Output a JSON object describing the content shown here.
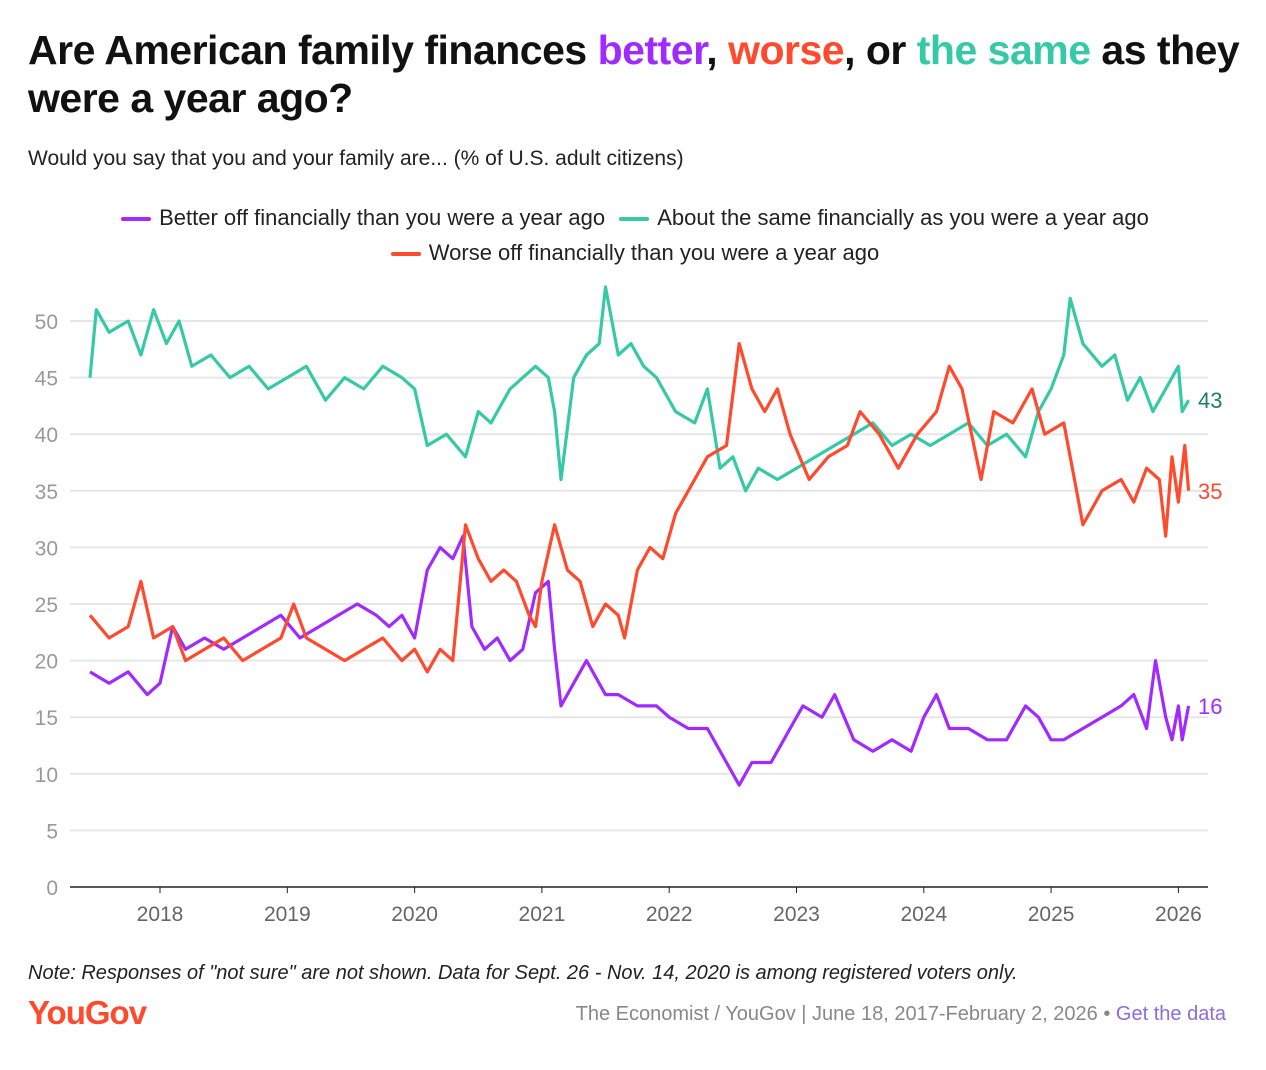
{
  "title": {
    "prefix": "Are American family finances ",
    "better": "better",
    "sep1": ", ",
    "worse": "worse",
    "sep2": ", or ",
    "same": "the same",
    "suffix": " as they were a year ago?"
  },
  "subtitle": "Would you say that you and your family are... (% of U.S. adult citizens)",
  "note": "Note: Responses of \"not sure\" are not shown. Data for Sept. 26 - Nov. 14, 2020 is among registered voters only.",
  "logo": "YouGov",
  "source": {
    "text": "The Economist / YouGov | June 18, 2017-February 2, 2026 • ",
    "link": "Get the data"
  },
  "colors": {
    "better": "#a02aff",
    "worse": "#ff4a2e",
    "same": "#36c9a7",
    "same_label": "#1f7f62",
    "grid": "#e6e6e6",
    "axis_text": "#999999"
  },
  "chart_data": {
    "type": "line",
    "title": "Are American family finances better, worse, or the same as they were a year ago?",
    "xlabel": "",
    "ylabel": "",
    "ylim": [
      0,
      53
    ],
    "xlim": [
      2017.35,
      2026.2
    ],
    "yticks": [
      0,
      5,
      10,
      15,
      20,
      25,
      30,
      35,
      40,
      45,
      50
    ],
    "xticks": [
      2018,
      2019,
      2020,
      2021,
      2022,
      2023,
      2024,
      2025,
      2026
    ],
    "grid": true,
    "legend": "top",
    "series": [
      {
        "key": "better",
        "name": "Better off financially than you were a year ago",
        "end_label": "16",
        "x": [
          2017.45,
          2017.6,
          2017.75,
          2017.9,
          2018.0,
          2018.1,
          2018.2,
          2018.35,
          2018.5,
          2018.65,
          2018.8,
          2018.95,
          2019.1,
          2019.25,
          2019.4,
          2019.55,
          2019.7,
          2019.8,
          2019.9,
          2020.0,
          2020.1,
          2020.2,
          2020.3,
          2020.38,
          2020.45,
          2020.55,
          2020.65,
          2020.75,
          2020.85,
          2020.95,
          2021.05,
          2021.1,
          2021.15,
          2021.25,
          2021.35,
          2021.5,
          2021.6,
          2021.75,
          2021.9,
          2022.0,
          2022.15,
          2022.3,
          2022.45,
          2022.55,
          2022.65,
          2022.8,
          2022.95,
          2023.05,
          2023.2,
          2023.3,
          2023.45,
          2023.6,
          2023.75,
          2023.9,
          2024.0,
          2024.1,
          2024.2,
          2024.35,
          2024.5,
          2024.65,
          2024.8,
          2024.9,
          2025.0,
          2025.1,
          2025.25,
          2025.4,
          2025.55,
          2025.65,
          2025.75,
          2025.82,
          2025.9,
          2025.95,
          2026.0,
          2026.03,
          2026.08
        ],
        "values": [
          19,
          18,
          19,
          17,
          18,
          23,
          21,
          22,
          21,
          22,
          23,
          24,
          22,
          23,
          24,
          25,
          24,
          23,
          24,
          22,
          28,
          30,
          29,
          31,
          23,
          21,
          22,
          20,
          21,
          26,
          27,
          21,
          16,
          18,
          20,
          17,
          17,
          16,
          16,
          15,
          14,
          14,
          11,
          9,
          11,
          11,
          14,
          16,
          15,
          17,
          13,
          12,
          13,
          12,
          15,
          17,
          14,
          14,
          13,
          13,
          16,
          15,
          13,
          13,
          14,
          15,
          16,
          17,
          14,
          20,
          15,
          13,
          16,
          13,
          16
        ]
      },
      {
        "key": "same",
        "name": "About the same financially as you were a year ago",
        "end_label": "43",
        "x": [
          2017.45,
          2017.5,
          2017.6,
          2017.75,
          2017.85,
          2017.95,
          2018.05,
          2018.15,
          2018.25,
          2018.4,
          2018.55,
          2018.7,
          2018.85,
          2019.0,
          2019.15,
          2019.3,
          2019.45,
          2019.6,
          2019.75,
          2019.9,
          2020.0,
          2020.1,
          2020.25,
          2020.4,
          2020.5,
          2020.6,
          2020.75,
          2020.85,
          2020.95,
          2021.05,
          2021.1,
          2021.15,
          2021.25,
          2021.35,
          2021.45,
          2021.5,
          2021.6,
          2021.7,
          2021.8,
          2021.9,
          2022.05,
          2022.2,
          2022.3,
          2022.4,
          2022.5,
          2022.6,
          2022.7,
          2022.85,
          2023.0,
          2023.15,
          2023.3,
          2023.45,
          2023.6,
          2023.75,
          2023.9,
          2024.05,
          2024.2,
          2024.35,
          2024.5,
          2024.65,
          2024.8,
          2024.9,
          2025.0,
          2025.1,
          2025.15,
          2025.25,
          2025.4,
          2025.5,
          2025.6,
          2025.7,
          2025.8,
          2025.9,
          2026.0,
          2026.03,
          2026.08
        ],
        "values": [
          45,
          51,
          49,
          50,
          47,
          51,
          48,
          50,
          46,
          47,
          45,
          46,
          44,
          45,
          46,
          43,
          45,
          44,
          46,
          45,
          44,
          39,
          40,
          38,
          42,
          41,
          44,
          45,
          46,
          45,
          42,
          36,
          45,
          47,
          48,
          53,
          47,
          48,
          46,
          45,
          42,
          41,
          44,
          37,
          38,
          35,
          37,
          36,
          37,
          38,
          39,
          40,
          41,
          39,
          40,
          39,
          40,
          41,
          39,
          40,
          38,
          42,
          44,
          47,
          52,
          48,
          46,
          47,
          43,
          45,
          42,
          44,
          46,
          42,
          43
        ]
      },
      {
        "key": "worse",
        "name": "Worse off financially than you were a year ago",
        "end_label": "35",
        "x": [
          2017.45,
          2017.6,
          2017.75,
          2017.85,
          2017.95,
          2018.1,
          2018.2,
          2018.35,
          2018.5,
          2018.65,
          2018.8,
          2018.95,
          2019.05,
          2019.15,
          2019.3,
          2019.45,
          2019.6,
          2019.75,
          2019.9,
          2020.0,
          2020.1,
          2020.2,
          2020.3,
          2020.4,
          2020.5,
          2020.6,
          2020.7,
          2020.8,
          2020.9,
          2020.95,
          2021.0,
          2021.1,
          2021.2,
          2021.3,
          2021.4,
          2021.5,
          2021.6,
          2021.65,
          2021.75,
          2021.85,
          2021.95,
          2022.05,
          2022.15,
          2022.3,
          2022.45,
          2022.55,
          2022.65,
          2022.75,
          2022.85,
          2022.95,
          2023.1,
          2023.25,
          2023.4,
          2023.5,
          2023.65,
          2023.8,
          2023.95,
          2024.1,
          2024.2,
          2024.3,
          2024.45,
          2024.55,
          2024.7,
          2024.85,
          2024.95,
          2025.1,
          2025.2,
          2025.25,
          2025.4,
          2025.55,
          2025.65,
          2025.75,
          2025.85,
          2025.9,
          2025.95,
          2026.0,
          2026.05,
          2026.08
        ],
        "values": [
          24,
          22,
          23,
          27,
          22,
          23,
          20,
          21,
          22,
          20,
          21,
          22,
          25,
          22,
          21,
          20,
          21,
          22,
          20,
          21,
          19,
          21,
          20,
          32,
          29,
          27,
          28,
          27,
          24,
          23,
          27,
          32,
          28,
          27,
          23,
          25,
          24,
          22,
          28,
          30,
          29,
          33,
          35,
          38,
          39,
          48,
          44,
          42,
          44,
          40,
          36,
          38,
          39,
          42,
          40,
          37,
          40,
          42,
          46,
          44,
          36,
          42,
          41,
          44,
          40,
          41,
          35,
          32,
          35,
          36,
          34,
          37,
          36,
          31,
          38,
          34,
          39,
          35
        ]
      }
    ]
  }
}
